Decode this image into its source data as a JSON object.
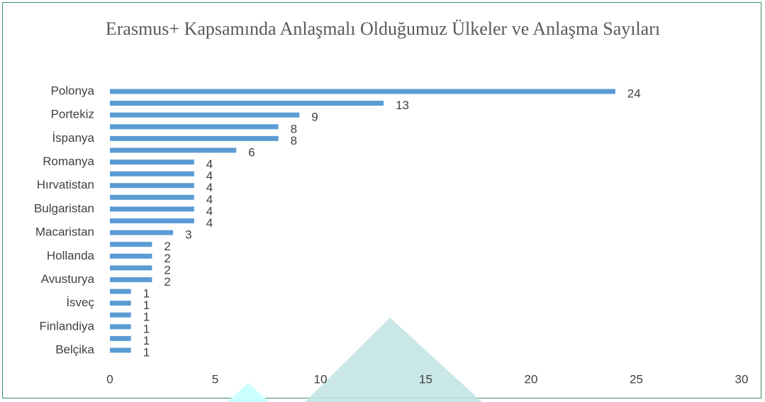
{
  "chart_data": {
    "type": "barh",
    "title": "Erasmus+ Kapsamında Anlaşmalı Olduğumuz Ülkeler ve Anlaşma Sayıları",
    "categories": [
      "Polonya",
      null,
      "Portekiz",
      null,
      "İspanya",
      null,
      "Romanya",
      null,
      "Hırvatistan",
      null,
      "Bulgaristan",
      null,
      "Macaristan",
      null,
      "Hollanda",
      null,
      "Avusturya",
      null,
      "İsveç",
      null,
      "Finlandiya",
      null,
      "Belçika"
    ],
    "values": [
      24,
      13,
      9,
      8,
      8,
      6,
      4,
      4,
      4,
      4,
      4,
      4,
      3,
      2,
      2,
      2,
      2,
      1,
      1,
      1,
      1,
      1,
      1
    ],
    "color": "#5b9bd5",
    "xlim": [
      0,
      30
    ],
    "xticks": [
      0,
      5,
      10,
      15,
      20,
      25,
      30
    ],
    "data_labels": true
  }
}
